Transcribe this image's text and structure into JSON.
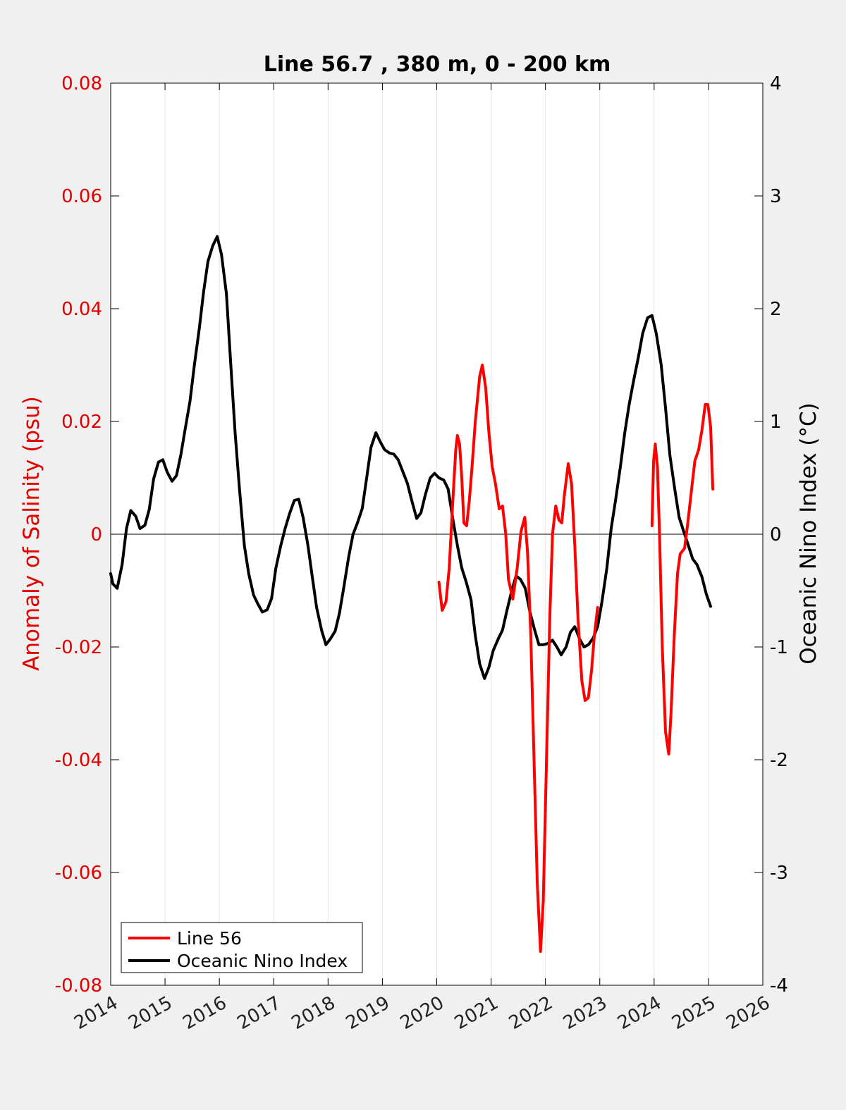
{
  "colors": {
    "salinity": "#ff0000",
    "oni": "#000000",
    "left_axis_text": "#e00000",
    "background": "#f0f0f0",
    "plot_background": "#ffffff",
    "grid": "#e4e4e4"
  },
  "chart_data": {
    "type": "line",
    "title": "Line 56.7 , 380 m, 0 - 200 km",
    "xlabel": "",
    "ylabel_left": "Anomaly of Salinity (psu)",
    "ylabel_right": "Oceanic Nino Index (°C)",
    "xlim": [
      2014,
      2026
    ],
    "ylim_left": [
      -0.08,
      0.08
    ],
    "ylim_right": [
      -4,
      4
    ],
    "x_ticks": [
      "2014",
      "2015",
      "2016",
      "2017",
      "2018",
      "2019",
      "2020",
      "2021",
      "2022",
      "2023",
      "2024",
      "2025",
      "2026"
    ],
    "y_ticks_left": [
      "-0.08",
      "-0.06",
      "-0.04",
      "-0.02",
      "0",
      "0.02",
      "0.04",
      "0.06",
      "0.08"
    ],
    "y_ticks_right": [
      "-4",
      "-3",
      "-2",
      "-1",
      "0",
      "1",
      "2",
      "3",
      "4"
    ],
    "vertical_grid": true,
    "zero_line": true,
    "legend_position": "bottom-left",
    "series": [
      {
        "name": "Line 56",
        "axis": "left",
        "segments": [
          [
            [
              2020.04,
              -0.0085
            ],
            [
              2020.1,
              -0.0135
            ],
            [
              2020.17,
              -0.012
            ],
            [
              2020.23,
              -0.006
            ],
            [
              2020.29,
              0.005
            ],
            [
              2020.35,
              0.015
            ],
            [
              2020.38,
              0.0175
            ],
            [
              2020.42,
              0.016
            ],
            [
              2020.46,
              0.01
            ],
            [
              2020.5,
              0.002
            ],
            [
              2020.55,
              0.0015
            ],
            [
              2020.6,
              0.006
            ],
            [
              2020.65,
              0.012
            ],
            [
              2020.71,
              0.02
            ],
            [
              2020.79,
              0.028
            ],
            [
              2020.84,
              0.03
            ],
            [
              2020.9,
              0.026
            ],
            [
              2020.96,
              0.018
            ],
            [
              2021.02,
              0.012
            ],
            [
              2021.08,
              0.009
            ],
            [
              2021.15,
              0.0045
            ],
            [
              2021.21,
              0.005
            ],
            [
              2021.27,
              0.0
            ],
            [
              2021.32,
              -0.008
            ],
            [
              2021.4,
              -0.0115
            ],
            [
              2021.48,
              -0.006
            ],
            [
              2021.55,
              0.0005
            ],
            [
              2021.62,
              0.003
            ],
            [
              2021.67,
              -0.003
            ],
            [
              2021.73,
              -0.018
            ],
            [
              2021.79,
              -0.04
            ],
            [
              2021.85,
              -0.062
            ],
            [
              2021.91,
              -0.074
            ],
            [
              2021.96,
              -0.065
            ],
            [
              2022.02,
              -0.04
            ],
            [
              2022.08,
              -0.015
            ],
            [
              2022.13,
              0.0
            ],
            [
              2022.19,
              0.005
            ],
            [
              2022.25,
              0.0025
            ],
            [
              2022.3,
              0.002
            ],
            [
              2022.35,
              0.007
            ],
            [
              2022.42,
              0.0125
            ],
            [
              2022.48,
              0.009
            ],
            [
              2022.54,
              -0.002
            ],
            [
              2022.6,
              -0.015
            ],
            [
              2022.67,
              -0.026
            ],
            [
              2022.73,
              -0.0295
            ],
            [
              2022.79,
              -0.029
            ],
            [
              2022.85,
              -0.024
            ],
            [
              2022.9,
              -0.018
            ],
            [
              2022.96,
              -0.013
            ]
          ],
          [
            [
              2023.96,
              0.0015
            ],
            [
              2023.99,
              0.013
            ],
            [
              2024.02,
              0.016
            ],
            [
              2024.06,
              0.012
            ],
            [
              2024.1,
              0.0
            ],
            [
              2024.15,
              -0.02
            ],
            [
              2024.21,
              -0.035
            ],
            [
              2024.27,
              -0.039
            ],
            [
              2024.31,
              -0.032
            ],
            [
              2024.37,
              -0.018
            ],
            [
              2024.43,
              -0.007
            ],
            [
              2024.48,
              -0.0035
            ],
            [
              2024.56,
              -0.0025
            ],
            [
              2024.62,
              0.002
            ],
            [
              2024.69,
              0.008
            ],
            [
              2024.75,
              0.013
            ],
            [
              2024.82,
              0.015
            ],
            [
              2024.88,
              0.0185
            ],
            [
              2024.94,
              0.023
            ],
            [
              2024.99,
              0.023
            ],
            [
              2025.04,
              0.019
            ],
            [
              2025.08,
              0.008
            ]
          ]
        ]
      },
      {
        "name": "Oceanic Nino Index",
        "axis": "right",
        "segments": [
          [
            [
              2014.0,
              -0.35
            ],
            [
              2014.04,
              -0.44
            ],
            [
              2014.12,
              -0.48
            ],
            [
              2014.21,
              -0.27
            ],
            [
              2014.29,
              0.05
            ],
            [
              2014.37,
              0.21
            ],
            [
              2014.46,
              0.16
            ],
            [
              2014.54,
              0.05
            ],
            [
              2014.63,
              0.08
            ],
            [
              2014.71,
              0.22
            ],
            [
              2014.79,
              0.49
            ],
            [
              2014.88,
              0.64
            ],
            [
              2014.96,
              0.66
            ],
            [
              2015.04,
              0.55
            ],
            [
              2015.13,
              0.47
            ],
            [
              2015.21,
              0.52
            ],
            [
              2015.29,
              0.7
            ],
            [
              2015.37,
              0.93
            ],
            [
              2015.46,
              1.18
            ],
            [
              2015.54,
              1.5
            ],
            [
              2015.63,
              1.82
            ],
            [
              2015.71,
              2.15
            ],
            [
              2015.79,
              2.42
            ],
            [
              2015.88,
              2.56
            ],
            [
              2015.96,
              2.64
            ],
            [
              2016.04,
              2.48
            ],
            [
              2016.13,
              2.13
            ],
            [
              2016.21,
              1.5
            ],
            [
              2016.29,
              0.9
            ],
            [
              2016.37,
              0.4
            ],
            [
              2016.46,
              -0.1
            ],
            [
              2016.54,
              -0.35
            ],
            [
              2016.63,
              -0.54
            ],
            [
              2016.71,
              -0.62
            ],
            [
              2016.79,
              -0.69
            ],
            [
              2016.88,
              -0.67
            ],
            [
              2016.96,
              -0.57
            ],
            [
              2017.04,
              -0.3
            ],
            [
              2017.13,
              -0.1
            ],
            [
              2017.21,
              0.05
            ],
            [
              2017.29,
              0.18
            ],
            [
              2017.38,
              0.3
            ],
            [
              2017.46,
              0.31
            ],
            [
              2017.54,
              0.15
            ],
            [
              2017.63,
              -0.1
            ],
            [
              2017.71,
              -0.38
            ],
            [
              2017.79,
              -0.65
            ],
            [
              2017.88,
              -0.85
            ],
            [
              2017.96,
              -0.98
            ],
            [
              2018.04,
              -0.93
            ],
            [
              2018.13,
              -0.86
            ],
            [
              2018.21,
              -0.7
            ],
            [
              2018.29,
              -0.47
            ],
            [
              2018.38,
              -0.2
            ],
            [
              2018.46,
              0.0
            ],
            [
              2018.54,
              0.1
            ],
            [
              2018.63,
              0.23
            ],
            [
              2018.71,
              0.5
            ],
            [
              2018.79,
              0.77
            ],
            [
              2018.88,
              0.9
            ],
            [
              2018.96,
              0.82
            ],
            [
              2019.04,
              0.75
            ],
            [
              2019.13,
              0.72
            ],
            [
              2019.21,
              0.71
            ],
            [
              2019.29,
              0.66
            ],
            [
              2019.38,
              0.55
            ],
            [
              2019.46,
              0.45
            ],
            [
              2019.54,
              0.3
            ],
            [
              2019.63,
              0.14
            ],
            [
              2019.71,
              0.19
            ],
            [
              2019.79,
              0.35
            ],
            [
              2019.88,
              0.5
            ],
            [
              2019.96,
              0.54
            ],
            [
              2020.04,
              0.5
            ],
            [
              2020.13,
              0.48
            ],
            [
              2020.21,
              0.4
            ],
            [
              2020.29,
              0.15
            ],
            [
              2020.38,
              -0.1
            ],
            [
              2020.46,
              -0.3
            ],
            [
              2020.54,
              -0.42
            ],
            [
              2020.63,
              -0.58
            ],
            [
              2020.71,
              -0.9
            ],
            [
              2020.79,
              -1.15
            ],
            [
              2020.88,
              -1.28
            ],
            [
              2020.96,
              -1.18
            ],
            [
              2021.04,
              -1.03
            ],
            [
              2021.13,
              -0.93
            ],
            [
              2021.21,
              -0.85
            ],
            [
              2021.29,
              -0.68
            ],
            [
              2021.38,
              -0.5
            ],
            [
              2021.46,
              -0.37
            ],
            [
              2021.54,
              -0.4
            ],
            [
              2021.63,
              -0.48
            ],
            [
              2021.71,
              -0.68
            ],
            [
              2021.79,
              -0.83
            ],
            [
              2021.88,
              -0.98
            ],
            [
              2021.96,
              -0.98
            ],
            [
              2022.04,
              -0.97
            ],
            [
              2022.13,
              -0.94
            ],
            [
              2022.21,
              -1.0
            ],
            [
              2022.29,
              -1.07
            ],
            [
              2022.38,
              -1.0
            ],
            [
              2022.46,
              -0.87
            ],
            [
              2022.54,
              -0.82
            ],
            [
              2022.63,
              -0.93
            ],
            [
              2022.71,
              -1.0
            ],
            [
              2022.79,
              -0.98
            ],
            [
              2022.88,
              -0.92
            ],
            [
              2022.96,
              -0.82
            ],
            [
              2023.04,
              -0.6
            ],
            [
              2023.13,
              -0.3
            ],
            [
              2023.21,
              0.05
            ],
            [
              2023.29,
              0.3
            ],
            [
              2023.38,
              0.6
            ],
            [
              2023.46,
              0.9
            ],
            [
              2023.54,
              1.15
            ],
            [
              2023.63,
              1.38
            ],
            [
              2023.71,
              1.57
            ],
            [
              2023.79,
              1.78
            ],
            [
              2023.88,
              1.92
            ],
            [
              2023.96,
              1.94
            ],
            [
              2024.04,
              1.78
            ],
            [
              2024.13,
              1.5
            ],
            [
              2024.21,
              1.12
            ],
            [
              2024.29,
              0.7
            ],
            [
              2024.38,
              0.4
            ],
            [
              2024.46,
              0.15
            ],
            [
              2024.54,
              0.03
            ],
            [
              2024.63,
              -0.1
            ],
            [
              2024.71,
              -0.22
            ],
            [
              2024.79,
              -0.27
            ],
            [
              2024.88,
              -0.38
            ],
            [
              2024.96,
              -0.53
            ],
            [
              2025.04,
              -0.64
            ]
          ]
        ]
      }
    ]
  }
}
